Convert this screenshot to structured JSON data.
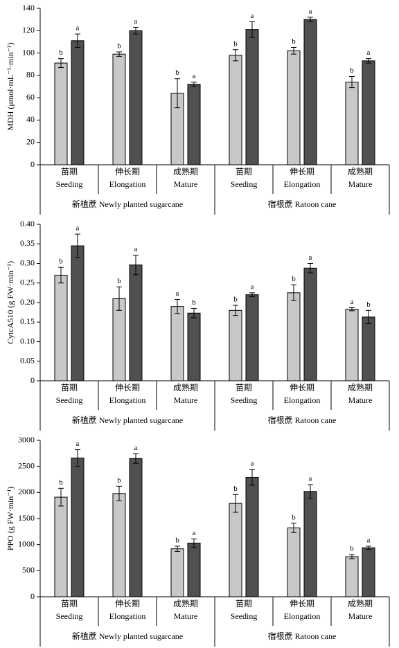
{
  "chart_data": [
    {
      "type": "bar",
      "y_label": "MDH (μmol·mL⁻¹·min⁻¹)",
      "categories": [
        "苗期",
        "伸长期",
        "成熟期",
        "苗期",
        "伸长期",
        "成熟期"
      ],
      "categories_en": [
        "Seeding",
        "Elongation",
        "Mature",
        "Seeding",
        "Elongation",
        "Mature"
      ],
      "groups": [
        "新植蔗 Newly planted sugarcane",
        "宿根蔗 Ratoon cane"
      ],
      "ylim": [
        0,
        140
      ],
      "yticks": [
        0,
        20,
        40,
        60,
        80,
        100,
        120,
        140
      ],
      "series": [
        {
          "color": "#c8c8c8",
          "values": [
            91,
            99,
            64,
            98,
            102,
            74
          ],
          "errors": [
            4,
            2,
            13,
            5,
            3,
            5
          ],
          "letters": [
            "b",
            "b",
            "b",
            "b",
            "b",
            "b"
          ]
        },
        {
          "color": "#505050",
          "values": [
            111,
            120,
            72,
            121,
            130,
            93
          ],
          "errors": [
            6,
            3,
            2,
            7,
            2,
            2
          ],
          "letters": [
            "a",
            "a",
            "a",
            "a",
            "a",
            "a"
          ]
        }
      ]
    },
    {
      "type": "bar",
      "y_label": "CytcA510 (g FW·min⁻¹)",
      "categories": [
        "苗期",
        "伸长期",
        "成熟期",
        "苗期",
        "伸长期",
        "成熟期"
      ],
      "categories_en": [
        "Seeding",
        "Elongation",
        "Mature",
        "Seeding",
        "Elongation",
        "Mature"
      ],
      "groups": [
        "新植蔗 Newly planted sugarcane",
        "宿根蔗 Ratoon cane"
      ],
      "ylim": [
        0,
        0.4
      ],
      "yticks": [
        0,
        0.05,
        {
          "value": 0.1,
          "label": "0.10"
        },
        0.15,
        {
          "value": 0.2,
          "label": "0.20"
        },
        0.25,
        {
          "value": 0.3,
          "label": "0.30"
        },
        0.35,
        {
          "value": 0.4,
          "label": "0.40"
        }
      ],
      "series": [
        {
          "color": "#c8c8c8",
          "values": [
            0.27,
            0.21,
            0.19,
            0.18,
            0.225,
            0.183
          ],
          "errors": [
            0.02,
            0.03,
            0.018,
            0.013,
            0.02,
            0.004
          ],
          "letters": [
            "b",
            "b",
            "a",
            "b",
            "b",
            "a"
          ]
        },
        {
          "color": "#505050",
          "values": [
            0.345,
            0.296,
            0.173,
            0.22,
            0.288,
            0.163
          ],
          "errors": [
            0.03,
            0.025,
            0.012,
            0.005,
            0.012,
            0.017
          ],
          "letters": [
            "a",
            "a",
            "b",
            "a",
            "a",
            "b"
          ]
        }
      ]
    },
    {
      "type": "bar",
      "y_label": "PPO (g FW·min⁻¹)",
      "categories": [
        "苗期",
        "伸长期",
        "成熟期",
        "苗期",
        "伸长期",
        "成熟期"
      ],
      "categories_en": [
        "Seeding",
        "Elongation",
        "Mature",
        "Seeding",
        "Elongation",
        "Mature"
      ],
      "groups": [
        "新植蔗 Newly planted sugarcane",
        "宿根蔗 Ratoon cane"
      ],
      "ylim": [
        0,
        3000
      ],
      "yticks": [
        0,
        500,
        1000,
        1500,
        2000,
        2500,
        3000
      ],
      "series": [
        {
          "color": "#c8c8c8",
          "values": [
            1910,
            1980,
            920,
            1790,
            1320,
            770
          ],
          "errors": [
            170,
            140,
            50,
            170,
            90,
            40
          ],
          "letters": [
            "b",
            "b",
            "b",
            "b",
            "b",
            "b"
          ]
        },
        {
          "color": "#505050",
          "values": [
            2660,
            2650,
            1030,
            2290,
            2020,
            940
          ],
          "errors": [
            160,
            90,
            80,
            150,
            130,
            30
          ],
          "letters": [
            "a",
            "a",
            "a",
            "a",
            "a",
            "a"
          ]
        }
      ]
    }
  ]
}
